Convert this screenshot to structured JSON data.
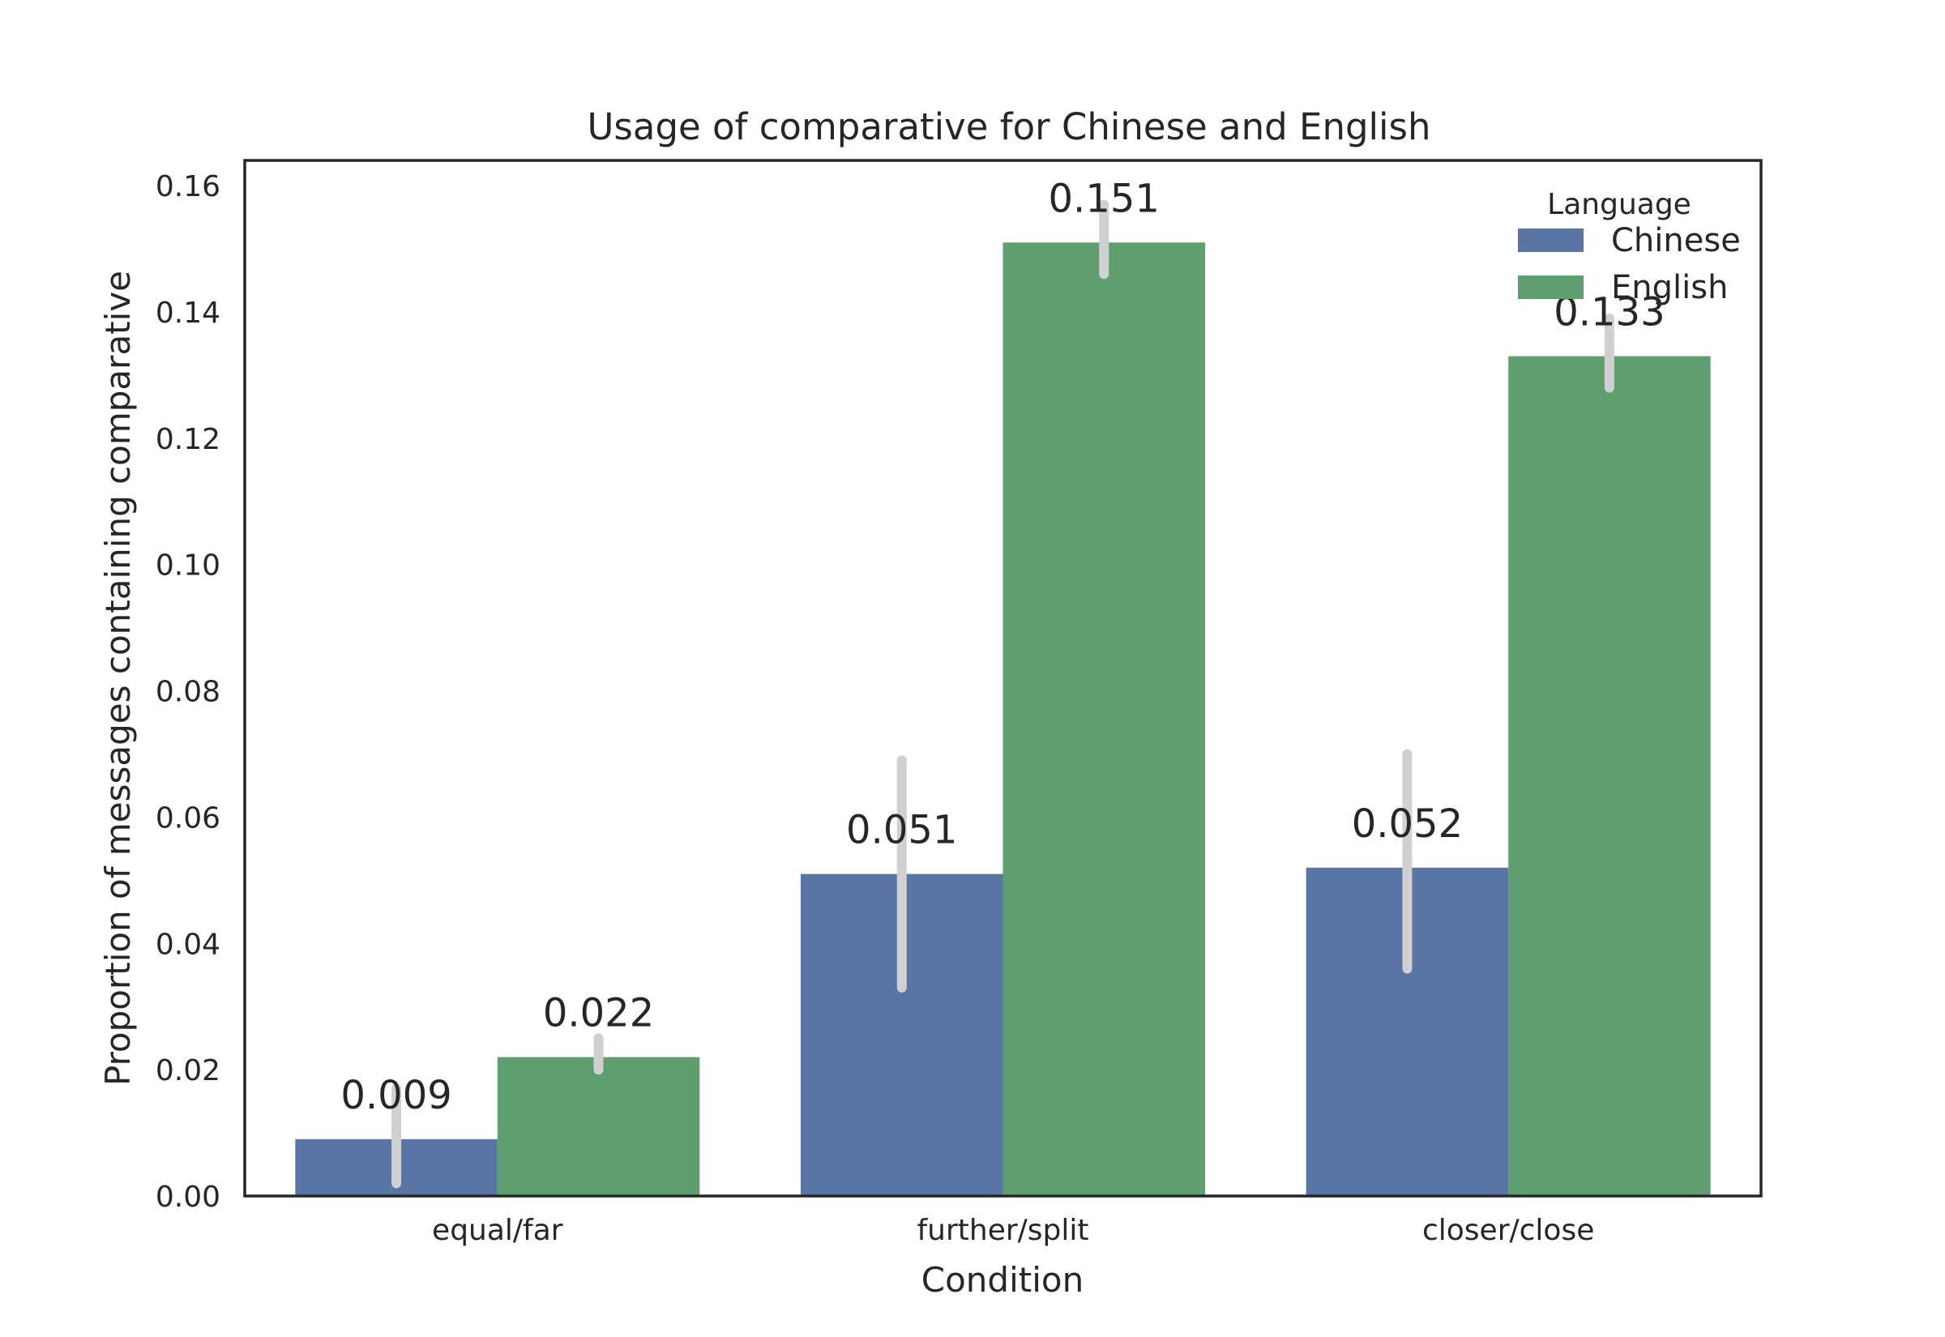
{
  "chart_data": {
    "type": "bar",
    "title": "Usage of comparative for Chinese and English",
    "xlabel": "Condition",
    "ylabel": "Proportion of messages containing comparative",
    "categories": [
      "equal/far",
      "further/split",
      "closer/close"
    ],
    "ylim": [
      0,
      0.164
    ],
    "yticks": [
      "0.00",
      "0.02",
      "0.04",
      "0.06",
      "0.08",
      "0.10",
      "0.12",
      "0.14",
      "0.16"
    ],
    "grid": false,
    "legend": {
      "title": "Language",
      "placement": "top-right"
    },
    "series": [
      {
        "name": "Chinese",
        "color": "#5875a4",
        "values": [
          0.009,
          0.051,
          0.052
        ],
        "labels": [
          "0.009",
          "0.051",
          "0.052"
        ],
        "ci": [
          [
            0.002,
            0.017
          ],
          [
            0.033,
            0.069
          ],
          [
            0.036,
            0.07
          ]
        ]
      },
      {
        "name": "English",
        "color": "#5f9e6e",
        "values": [
          0.022,
          0.151,
          0.133
        ],
        "labels": [
          "0.022",
          "0.151",
          "0.133"
        ],
        "ci": [
          [
            0.02,
            0.025
          ],
          [
            0.146,
            0.157
          ],
          [
            0.128,
            0.139
          ]
        ]
      }
    ],
    "errorbar_color": "#d0d0d0"
  }
}
